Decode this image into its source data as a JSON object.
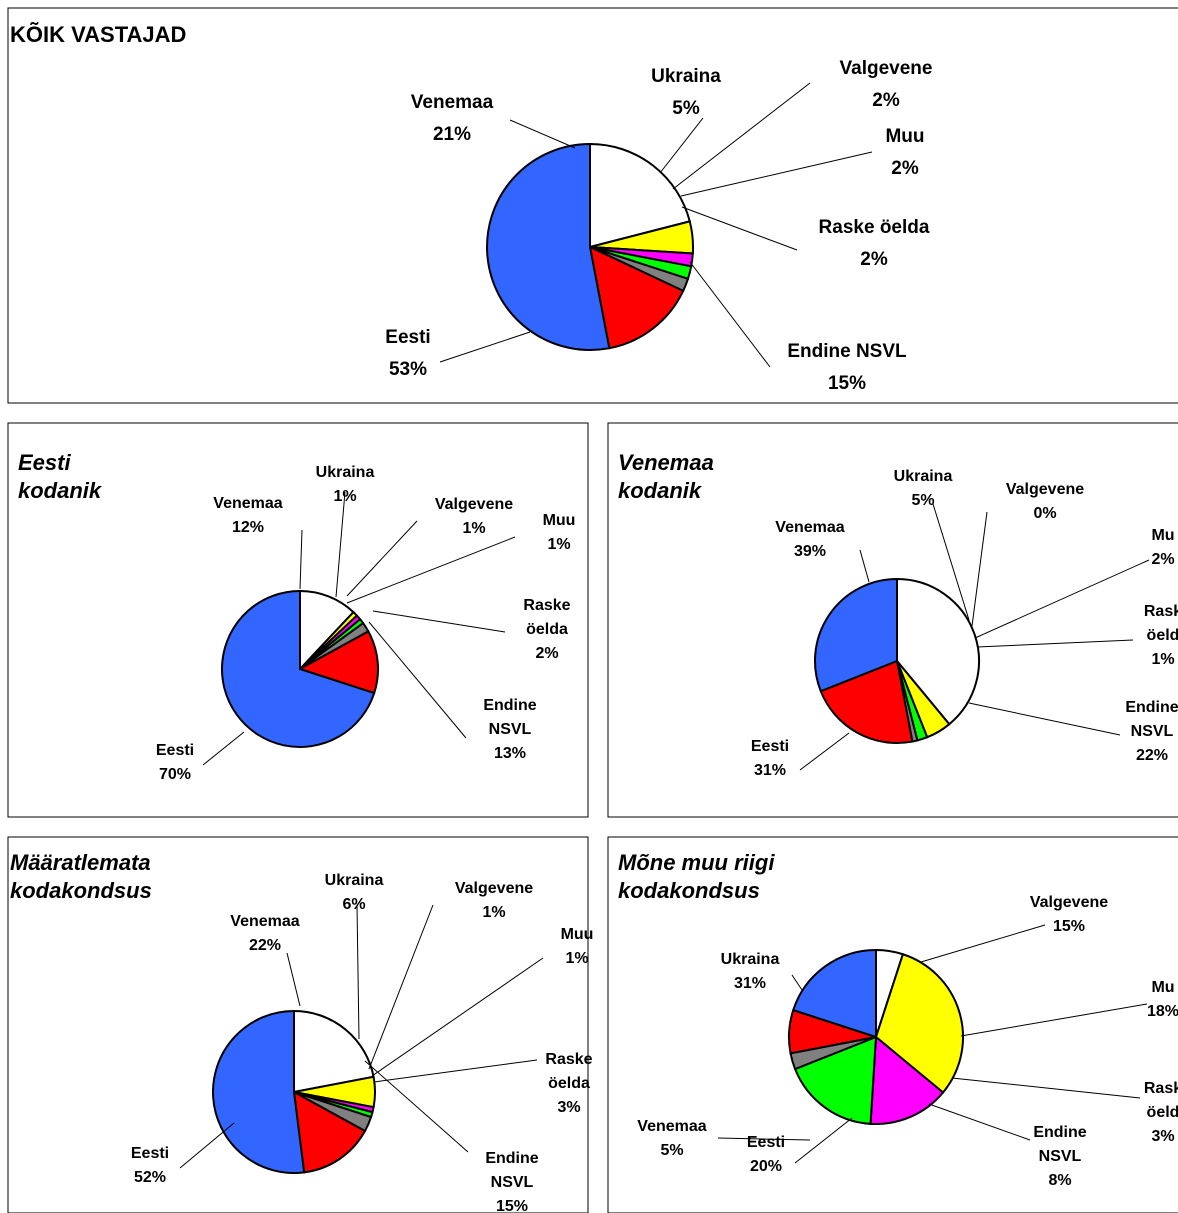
{
  "colors": {
    "Eesti": "#3366ff",
    "Endine NSVL": "#ff0000",
    "Raske öelda": "#808080",
    "Muu": "#00ff00",
    "Valgevene": "#ff00ff",
    "Ukraina": "#ffff00",
    "Venemaa": "#ffffff"
  },
  "chart_data": [
    {
      "type": "pie",
      "title": [
        "KÕIK VASTAJAD"
      ],
      "slices": [
        {
          "name": "Eesti",
          "value": 53,
          "label": [
            "Eesti",
            "53%"
          ]
        },
        {
          "name": "Endine NSVL",
          "value": 15,
          "label": [
            "Endine NSVL",
            "15%"
          ]
        },
        {
          "name": "Raske öelda",
          "value": 2,
          "label": [
            "Raske öelda",
            "2%"
          ]
        },
        {
          "name": "Muu",
          "value": 2,
          "label": [
            "Muu",
            "2%"
          ]
        },
        {
          "name": "Valgevene",
          "value": 2,
          "label": [
            "Valgevene",
            "2%"
          ]
        },
        {
          "name": "Ukraina",
          "value": 5,
          "label": [
            "Ukraina",
            "5%"
          ]
        },
        {
          "name": "Venemaa",
          "value": 21,
          "label": [
            "Venemaa",
            "21%"
          ]
        }
      ]
    },
    {
      "type": "pie",
      "title": [
        "Eesti",
        "kodanik"
      ],
      "slices": [
        {
          "name": "Eesti",
          "value": 70,
          "label": [
            "Eesti",
            "70%"
          ]
        },
        {
          "name": "Endine NSVL",
          "value": 13,
          "label": [
            "Endine",
            "NSVL",
            "13%"
          ]
        },
        {
          "name": "Raske öelda",
          "value": 2,
          "label": [
            "Raske",
            "öelda",
            "2%"
          ]
        },
        {
          "name": "Muu",
          "value": 1,
          "label": [
            "Muu",
            "1%"
          ]
        },
        {
          "name": "Valgevene",
          "value": 1,
          "label": [
            "Valgevene",
            "1%"
          ]
        },
        {
          "name": "Ukraina",
          "value": 1,
          "label": [
            "Ukraina",
            "1%"
          ]
        },
        {
          "name": "Venemaa",
          "value": 12,
          "label": [
            "Venemaa",
            "12%"
          ]
        }
      ]
    },
    {
      "type": "pie",
      "title": [
        "Venemaa",
        "kodanik"
      ],
      "slices": [
        {
          "name": "Eesti",
          "value": 31,
          "label": [
            "Eesti",
            "31%"
          ]
        },
        {
          "name": "Endine NSVL",
          "value": 22,
          "label": [
            "Endine",
            "NSVL",
            "22%"
          ]
        },
        {
          "name": "Raske öelda",
          "value": 1,
          "label": [
            "Rask",
            "öeld",
            "1%"
          ]
        },
        {
          "name": "Muu",
          "value": 2,
          "label": [
            "Mu",
            "2%"
          ]
        },
        {
          "name": "Valgevene",
          "value": 0,
          "label": [
            "Valgevene",
            "0%"
          ]
        },
        {
          "name": "Ukraina",
          "value": 5,
          "label": [
            "Ukraina",
            "5%"
          ]
        },
        {
          "name": "Venemaa",
          "value": 39,
          "label": [
            "Venemaa",
            "39%"
          ]
        }
      ]
    },
    {
      "type": "pie",
      "title": [
        "Määratlemata",
        "kodakondsus"
      ],
      "slices": [
        {
          "name": "Eesti",
          "value": 52,
          "label": [
            "Eesti",
            "52%"
          ]
        },
        {
          "name": "Endine NSVL",
          "value": 15,
          "label": [
            "Endine",
            "NSVL",
            "15%"
          ]
        },
        {
          "name": "Raske öelda",
          "value": 3,
          "label": [
            "Raske",
            "öelda",
            "3%"
          ]
        },
        {
          "name": "Muu",
          "value": 1,
          "label": [
            "Muu",
            "1%"
          ]
        },
        {
          "name": "Valgevene",
          "value": 1,
          "label": [
            "Valgevene",
            "1%"
          ]
        },
        {
          "name": "Ukraina",
          "value": 6,
          "label": [
            "Ukraina",
            "6%"
          ]
        },
        {
          "name": "Venemaa",
          "value": 22,
          "label": [
            "Venemaa",
            "22%"
          ]
        }
      ]
    },
    {
      "type": "pie",
      "title": [
        "Mõne muu riigi",
        "kodakondsus"
      ],
      "slices": [
        {
          "name": "Eesti",
          "value": 20,
          "label": [
            "Eesti",
            "20%"
          ]
        },
        {
          "name": "Endine NSVL",
          "value": 8,
          "label": [
            "Endine",
            "NSVL",
            "8%"
          ]
        },
        {
          "name": "Raske öelda",
          "value": 3,
          "label": [
            "Rask",
            "öeld",
            "3%"
          ]
        },
        {
          "name": "Muu",
          "value": 18,
          "label": [
            "Mu",
            "18%"
          ]
        },
        {
          "name": "Valgevene",
          "value": 15,
          "label": [
            "Valgevene",
            "15%"
          ]
        },
        {
          "name": "Ukraina",
          "value": 31,
          "label": [
            "Ukraina",
            "31%"
          ]
        },
        {
          "name": "Venemaa",
          "value": 5,
          "label": [
            "Venemaa",
            "5%"
          ]
        }
      ]
    }
  ]
}
